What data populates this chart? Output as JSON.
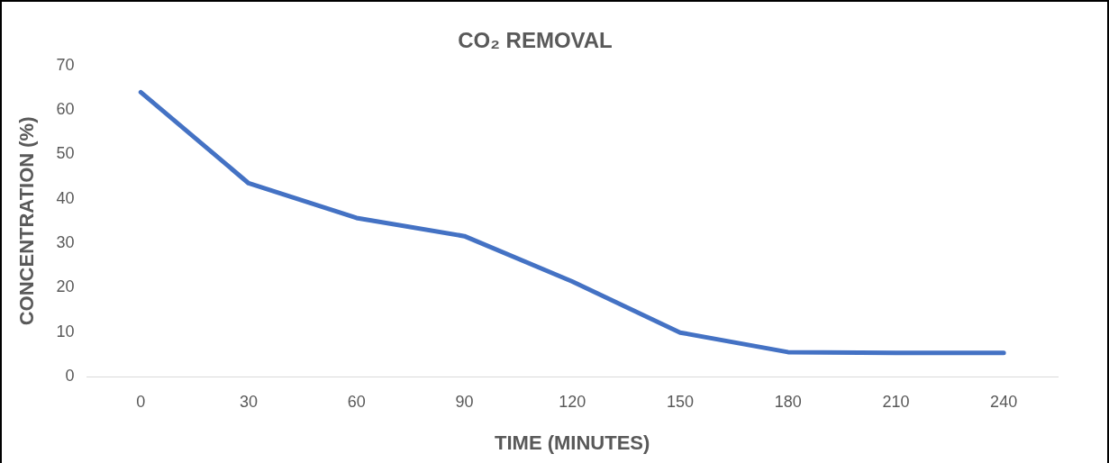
{
  "chart_data": {
    "type": "line",
    "title": "CO₂ REMOVAL",
    "xlabel": "TIME (MINUTES)",
    "ylabel": "CONCENTRATION (%)",
    "categories": [
      "0",
      "30",
      "60",
      "90",
      "120",
      "150",
      "180",
      "210",
      "240"
    ],
    "series": [
      {
        "color": "#4472c4",
        "values": [
          64,
          43.5,
          35.7,
          31.6,
          21.4,
          9.9,
          5.5,
          5.3,
          5.3
        ]
      }
    ],
    "ylim": [
      0,
      70
    ],
    "yticks": [
      0,
      10,
      20,
      30,
      40,
      50,
      60,
      70
    ],
    "grid": false,
    "legend": false,
    "marker": "none",
    "line_style": "solid"
  }
}
